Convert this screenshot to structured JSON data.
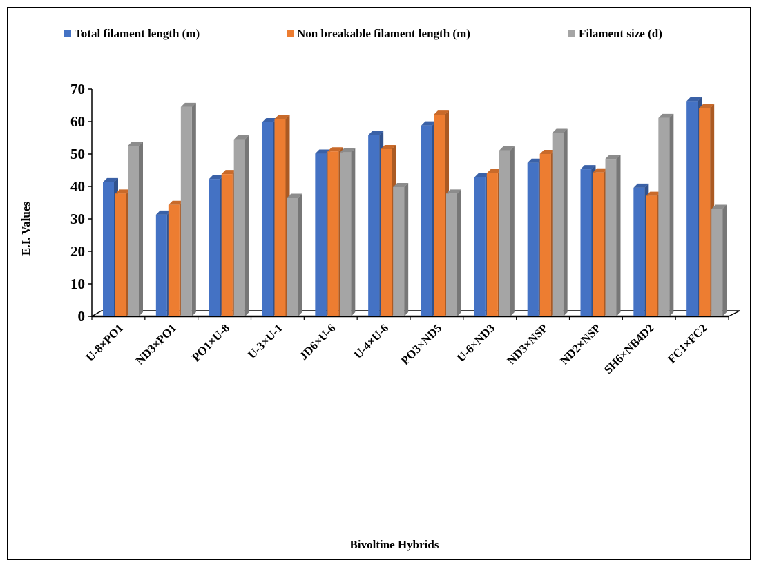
{
  "chart_data": {
    "type": "bar",
    "title": "",
    "xlabel": "Bivoltine Hybrids",
    "ylabel": "E.I. Values",
    "ylim": [
      0,
      70
    ],
    "yticks": [
      "0",
      "10",
      "20",
      "30",
      "40",
      "50",
      "60",
      "70"
    ],
    "grid": false,
    "legend_position": "top",
    "categories": [
      "U-8×PO1",
      "ND3×PO1",
      "PO1×U-8",
      "U-3×U-1",
      "JD6×U-6",
      "U-4×U-6",
      "PO3×ND5",
      "U-6×ND3",
      "ND3×NSP",
      "ND2×NSP",
      "SH6×NB4D2",
      "FC1×FC2"
    ],
    "series": [
      {
        "name": "Total filament length   (m)",
        "color": "#4472C4",
        "values": [
          43,
          33,
          44,
          61.5,
          51.8,
          57.5,
          60.5,
          44.5,
          49,
          47,
          41.3,
          68
        ]
      },
      {
        "name": "Non breakable filament length  (m)",
        "color": "#ED7D31",
        "values": [
          39.5,
          36,
          45.5,
          62.5,
          52.5,
          53.2,
          63.8,
          45.8,
          51.7,
          46,
          38.8,
          65.8
        ]
      },
      {
        "name": "Filament size   (d)",
        "color": "#A5A5A5",
        "values": [
          54.2,
          66.2,
          56.2,
          38.2,
          52.2,
          41.5,
          39.5,
          52.8,
          58.2,
          50.2,
          62.8,
          34.8
        ]
      }
    ]
  }
}
